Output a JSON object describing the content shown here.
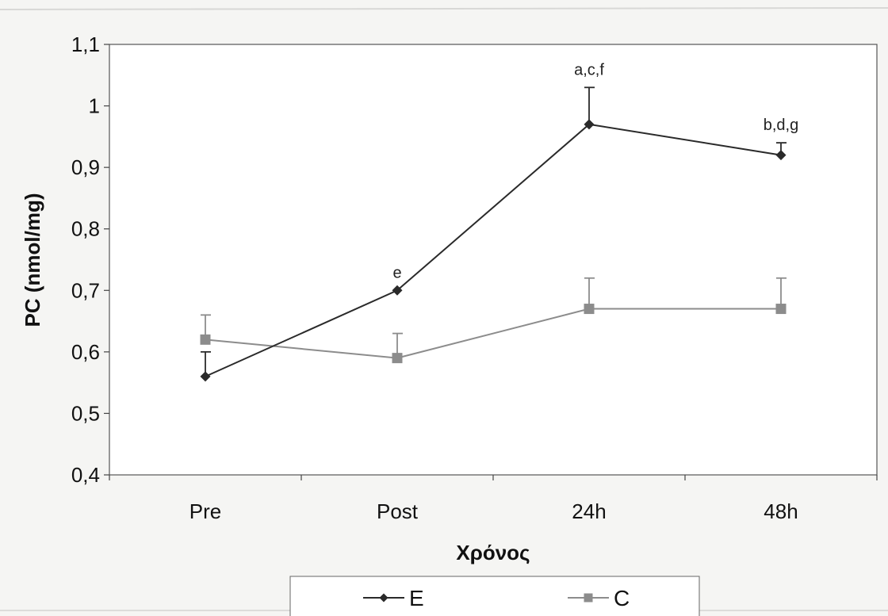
{
  "chart_data": {
    "type": "line",
    "title": "",
    "xlabel": "Χρόνος",
    "ylabel": "PC (nmol/mg)",
    "categories": [
      "Pre",
      "Post",
      "24h",
      "48h"
    ],
    "ylim": [
      0.4,
      1.1
    ],
    "yticks": [
      0.4,
      0.5,
      0.6,
      0.7,
      0.8,
      0.9,
      1.0,
      1.1
    ],
    "ytick_labels": [
      "0,4",
      "0,5",
      "0,6",
      "0,7",
      "0,8",
      "0,9",
      "1",
      "1,1"
    ],
    "grid": false,
    "legend_position": "bottom",
    "series": [
      {
        "name": "E",
        "marker": "diamond",
        "color": "#2a2a2a",
        "values": [
          0.56,
          0.7,
          0.97,
          0.92
        ],
        "errors": [
          0.04,
          0.0,
          0.06,
          0.02
        ]
      },
      {
        "name": "C",
        "marker": "square",
        "color": "#8c8c8c",
        "values": [
          0.62,
          0.59,
          0.67,
          0.67
        ],
        "errors": [
          0.04,
          0.04,
          0.05,
          0.05
        ]
      }
    ],
    "annotations": [
      {
        "category": "Post",
        "text": "e"
      },
      {
        "category": "24h",
        "text": "a,c,f"
      },
      {
        "category": "48h",
        "text": "b,d,g"
      }
    ]
  }
}
